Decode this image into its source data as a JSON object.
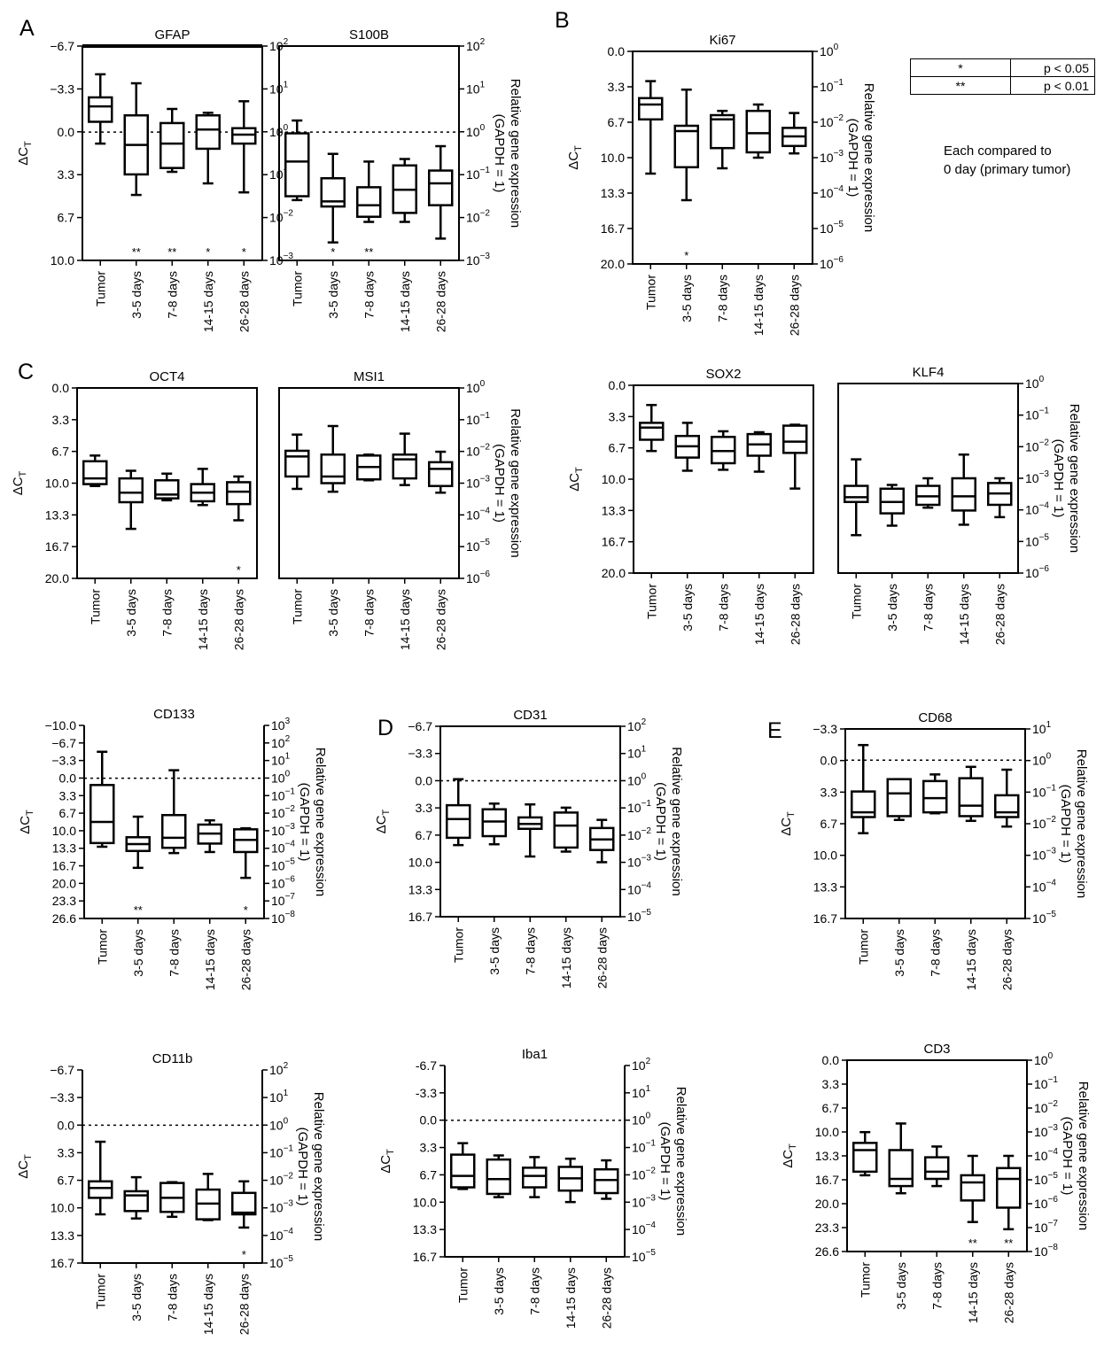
{
  "panel_letters": [
    "A",
    "B",
    "C",
    "D",
    "E"
  ],
  "legend": {
    "rows": [
      {
        "symbol": "*",
        "pvalue": "p < 0.05"
      },
      {
        "symbol": "**",
        "pvalue": "p < 0.01"
      }
    ],
    "note_line1": "Each compared to",
    "note_line2": "0 day (primary tumor)"
  },
  "common": {
    "categories": [
      "Tumor",
      "3-5 days",
      "7-8 days",
      "14-15 days",
      "26-28 days"
    ],
    "left_axis_label": "ΔC",
    "left_axis_label_sub": "T",
    "right_axis_label_line1": "Relative gene expression",
    "right_axis_label_line2": "(GAPDH = 1)"
  },
  "chart_data": [
    {
      "type": "box",
      "panel": "A",
      "title": "GFAP",
      "left_ticks": [
        "−6.7",
        "−3.3",
        "0.0",
        "3.3",
        "6.7",
        "10.0"
      ],
      "right_ticks": [
        2,
        1,
        0,
        -1,
        -2,
        -3
      ],
      "ylim": [
        -6.7,
        10.0
      ],
      "dotted_line_at": 0,
      "boxes": [
        {
          "min": -4.5,
          "q1": -2.7,
          "median": -2.0,
          "q3": -0.8,
          "max": 0.9
        },
        {
          "min": -3.8,
          "q1": -1.3,
          "median": 1.0,
          "q3": 3.3,
          "max": 4.9
        },
        {
          "min": -1.8,
          "q1": -0.7,
          "median": 0.9,
          "q3": 2.8,
          "max": 3.1
        },
        {
          "min": -1.5,
          "q1": -1.3,
          "median": -0.2,
          "q3": 1.3,
          "max": 4.0
        },
        {
          "min": -2.4,
          "q1": -0.3,
          "median": 0.2,
          "q3": 0.9,
          "max": 4.7
        }
      ],
      "significance": [
        "",
        "**",
        "**",
        "*",
        "*"
      ]
    },
    {
      "type": "box",
      "panel": "A",
      "title": "S100B",
      "left_ticks": [],
      "right_ticks": [
        2,
        1,
        0,
        -1,
        -2,
        -3
      ],
      "ylim": [
        -6.7,
        10.0
      ],
      "dotted_line_at": 0,
      "boxes": [
        {
          "min": -0.9,
          "q1": 0.1,
          "median": 2.3,
          "q3": 5.0,
          "max": 5.3
        },
        {
          "min": 1.7,
          "q1": 3.6,
          "median": 5.4,
          "q3": 5.8,
          "max": 8.6
        },
        {
          "min": 2.3,
          "q1": 4.3,
          "median": 5.7,
          "q3": 6.6,
          "max": 7.0
        },
        {
          "min": 2.1,
          "q1": 2.6,
          "median": 4.5,
          "q3": 6.3,
          "max": 7.0
        },
        {
          "min": 1.1,
          "q1": 3.0,
          "median": 4.0,
          "q3": 5.7,
          "max": 8.3
        }
      ],
      "significance": [
        "",
        "*",
        "**",
        "",
        ""
      ]
    },
    {
      "type": "box",
      "panel": "B",
      "title": "Ki67",
      "left_ticks": [
        "0.0",
        "3.3",
        "6.7",
        "10.0",
        "13.3",
        "16.7",
        "20.0"
      ],
      "right_ticks": [
        0,
        -1,
        -2,
        -3,
        -4,
        -5,
        -6
      ],
      "ylim": [
        0,
        20.0
      ],
      "dotted_line_at": null,
      "boxes": [
        {
          "min": 2.8,
          "q1": 4.4,
          "median": 5.0,
          "q3": 6.4,
          "max": 11.5
        },
        {
          "min": 3.6,
          "q1": 7.0,
          "median": 7.5,
          "q3": 10.9,
          "max": 14.0
        },
        {
          "min": 5.6,
          "q1": 6.0,
          "median": 6.4,
          "q3": 9.1,
          "max": 11.0
        },
        {
          "min": 5.0,
          "q1": 5.6,
          "median": 7.7,
          "q3": 9.5,
          "max": 10.0
        },
        {
          "min": 5.8,
          "q1": 7.2,
          "median": 8.0,
          "q3": 8.9,
          "max": 9.6
        }
      ],
      "significance": [
        "",
        "*",
        "",
        "",
        ""
      ]
    },
    {
      "type": "box",
      "panel": "C",
      "title": "OCT4",
      "left_ticks": [
        "0.0",
        "3.3",
        "6.7",
        "10.0",
        "13.3",
        "16.7",
        "20.0"
      ],
      "right_ticks": [],
      "ylim": [
        0,
        20.0
      ],
      "dotted_line_at": null,
      "boxes": [
        {
          "min": 7.1,
          "q1": 7.7,
          "median": 9.5,
          "q3": 10.1,
          "max": 10.3
        },
        {
          "min": 8.7,
          "q1": 9.5,
          "median": 11.0,
          "q3": 12.0,
          "max": 14.8
        },
        {
          "min": 9.0,
          "q1": 9.7,
          "median": 11.2,
          "q3": 11.6,
          "max": 11.8
        },
        {
          "min": 8.5,
          "q1": 10.1,
          "median": 11.0,
          "q3": 11.9,
          "max": 12.3
        },
        {
          "min": 9.3,
          "q1": 9.9,
          "median": 10.9,
          "q3": 12.2,
          "max": 13.9
        }
      ],
      "significance": [
        "",
        "",
        "",
        "",
        "*"
      ]
    },
    {
      "type": "box",
      "panel": "C",
      "title": "MSI1",
      "left_ticks": [],
      "right_ticks": [
        0,
        -1,
        -2,
        -3,
        -4,
        -5,
        -6
      ],
      "ylim": [
        0,
        20.0
      ],
      "dotted_line_at": null,
      "boxes": [
        {
          "min": 4.9,
          "q1": 6.6,
          "median": 7.2,
          "q3": 9.3,
          "max": 10.6
        },
        {
          "min": 4.0,
          "q1": 7.0,
          "median": 9.3,
          "q3": 10.0,
          "max": 10.9
        },
        {
          "min": 7.0,
          "q1": 7.1,
          "median": 8.3,
          "q3": 9.6,
          "max": 9.7
        },
        {
          "min": 4.8,
          "q1": 7.0,
          "median": 7.5,
          "q3": 9.5,
          "max": 10.2
        },
        {
          "min": 6.7,
          "q1": 7.8,
          "median": 8.5,
          "q3": 10.3,
          "max": 11.0
        }
      ],
      "significance": [
        "",
        "",
        "",
        "",
        ""
      ]
    },
    {
      "type": "box",
      "panel": "C",
      "title": "SOX2",
      "left_ticks": [
        "0.0",
        "3.3",
        "6.7",
        "10.0",
        "13.3",
        "16.7",
        "20.0"
      ],
      "right_ticks": [],
      "ylim": [
        0,
        20.0
      ],
      "dotted_line_at": null,
      "boxes": [
        {
          "min": 2.1,
          "q1": 4.0,
          "median": 4.5,
          "q3": 5.8,
          "max": 7.0
        },
        {
          "min": 4.0,
          "q1": 5.4,
          "median": 6.5,
          "q3": 7.7,
          "max": 9.1
        },
        {
          "min": 4.9,
          "q1": 5.5,
          "median": 7.0,
          "q3": 8.3,
          "max": 9.0
        },
        {
          "min": 5.0,
          "q1": 5.2,
          "median": 6.3,
          "q3": 7.5,
          "max": 9.2
        },
        {
          "min": 4.2,
          "q1": 4.3,
          "median": 6.0,
          "q3": 7.2,
          "max": 11.0
        }
      ],
      "significance": [
        "",
        "",
        "",
        "",
        ""
      ]
    },
    {
      "type": "box",
      "panel": "C",
      "title": "KLF4",
      "left_ticks": [],
      "right_ticks": [
        0,
        -1,
        -2,
        -3,
        -4,
        -5,
        -6
      ],
      "ylim": [
        0,
        20.0
      ],
      "dotted_line_at": null,
      "boxes": [
        {
          "min": 8.0,
          "q1": 10.8,
          "median": 12.0,
          "q3": 12.5,
          "max": 16.0
        },
        {
          "min": 10.7,
          "q1": 11.1,
          "median": 12.5,
          "q3": 13.7,
          "max": 15.0
        },
        {
          "min": 10.0,
          "q1": 10.8,
          "median": 11.9,
          "q3": 12.8,
          "max": 13.1
        },
        {
          "min": 7.5,
          "q1": 10.0,
          "median": 11.9,
          "q3": 13.4,
          "max": 14.9
        },
        {
          "min": 10.0,
          "q1": 10.5,
          "median": 11.6,
          "q3": 12.8,
          "max": 14.1
        }
      ],
      "significance": [
        "",
        "",
        "",
        "",
        ""
      ]
    },
    {
      "type": "box",
      "panel": "C",
      "title": "CD133",
      "left_ticks": [
        "−10.0",
        "−6.7",
        "−3.3",
        "0.0",
        "3.3",
        "6.7",
        "10.0",
        "13.3",
        "16.7",
        "20.0",
        "23.3",
        "26.6"
      ],
      "right_ticks": [
        3,
        2,
        1,
        0,
        -1,
        -2,
        -3,
        -4,
        -5,
        -6,
        -7,
        -8
      ],
      "ylim": [
        -10.0,
        26.6
      ],
      "dotted_line_at": 0,
      "boxes": [
        {
          "min": -5.0,
          "q1": 1.3,
          "median": 8.3,
          "q3": 12.3,
          "max": 13.0
        },
        {
          "min": 7.3,
          "q1": 11.2,
          "median": 12.5,
          "q3": 13.8,
          "max": 17.0
        },
        {
          "min": -1.5,
          "q1": 7.0,
          "median": 11.3,
          "q3": 13.2,
          "max": 14.2
        },
        {
          "min": 8.0,
          "q1": 8.8,
          "median": 10.5,
          "q3": 12.4,
          "max": 14.0
        },
        {
          "min": 9.5,
          "q1": 9.7,
          "median": 11.7,
          "q3": 14.0,
          "max": 18.9
        }
      ],
      "significance": [
        "",
        "**",
        "",
        "",
        "*"
      ]
    },
    {
      "type": "box",
      "panel": "D",
      "title": "CD31",
      "left_ticks": [
        "−6.7",
        "−3.3",
        "0.0",
        "3.3",
        "6.7",
        "10.0",
        "13.3",
        "16.7"
      ],
      "right_ticks": [
        2,
        1,
        0,
        -1,
        -2,
        -3,
        -4,
        -5
      ],
      "ylim": [
        -6.7,
        16.7
      ],
      "dotted_line_at": 0,
      "boxes": [
        {
          "min": -0.2,
          "q1": 3.0,
          "median": 4.7,
          "q3": 7.0,
          "max": 7.9
        },
        {
          "min": 2.8,
          "q1": 3.5,
          "median": 5.0,
          "q3": 6.8,
          "max": 7.8
        },
        {
          "min": 2.9,
          "q1": 4.5,
          "median": 5.3,
          "q3": 5.9,
          "max": 9.3
        },
        {
          "min": 3.3,
          "q1": 3.9,
          "median": 5.5,
          "q3": 8.2,
          "max": 8.7
        },
        {
          "min": 4.8,
          "q1": 5.8,
          "median": 7.2,
          "q3": 8.5,
          "max": 10.0
        }
      ],
      "significance": [
        "",
        "",
        "",
        "",
        ""
      ]
    },
    {
      "type": "box",
      "panel": "E",
      "title": "CD68",
      "left_ticks": [
        "−3.3",
        "0.0",
        "3.3",
        "6.7",
        "10.0",
        "13.3",
        "16.7"
      ],
      "right_ticks": [
        1,
        0,
        -1,
        -2,
        -3,
        -4,
        -5
      ],
      "ylim": [
        -3.3,
        16.7
      ],
      "dotted_line_at": 0,
      "boxes": [
        {
          "min": -1.6,
          "q1": 3.3,
          "median": 5.5,
          "q3": 6.0,
          "max": 7.7
        },
        {
          "min": 2.0,
          "q1": 2.0,
          "median": 3.5,
          "q3": 5.9,
          "max": 6.3
        },
        {
          "min": 1.5,
          "q1": 2.2,
          "median": 4.0,
          "q3": 5.5,
          "max": 5.6
        },
        {
          "min": 0.7,
          "q1": 1.9,
          "median": 4.8,
          "q3": 5.9,
          "max": 6.4
        },
        {
          "min": 1.0,
          "q1": 3.7,
          "median": 5.5,
          "q3": 6.0,
          "max": 7.0
        }
      ],
      "significance": [
        "",
        "",
        "",
        "",
        ""
      ]
    },
    {
      "type": "box",
      "panel": "E",
      "title": "CD11b",
      "left_ticks": [
        "−6.7",
        "−3.3",
        "0.0",
        "3.3",
        "6.7",
        "10.0",
        "13.3",
        "16.7"
      ],
      "right_ticks": [
        2,
        1,
        0,
        -1,
        -2,
        -3,
        -4,
        -5
      ],
      "ylim": [
        -6.7,
        16.7
      ],
      "dotted_line_at": 0,
      "boxes": [
        {
          "min": 2.0,
          "q1": 6.8,
          "median": 7.6,
          "q3": 8.8,
          "max": 10.8
        },
        {
          "min": 6.3,
          "q1": 8.0,
          "median": 8.5,
          "q3": 10.4,
          "max": 11.3
        },
        {
          "min": 6.9,
          "q1": 7.0,
          "median": 8.8,
          "q3": 10.5,
          "max": 11.1
        },
        {
          "min": 5.9,
          "q1": 7.8,
          "median": 9.5,
          "q3": 11.4,
          "max": 11.5
        },
        {
          "min": 6.8,
          "q1": 8.2,
          "median": 10.6,
          "q3": 10.8,
          "max": 12.4
        }
      ],
      "significance": [
        "",
        "",
        "",
        "",
        "*"
      ]
    },
    {
      "type": "box",
      "panel": "E",
      "title": "Iba1",
      "left_ticks": [
        "-6.7",
        "-3.3",
        "0.0",
        "3.3",
        "6.7",
        "10.0",
        "13.3",
        "16.7"
      ],
      "right_ticks": [
        2,
        1,
        0,
        -1,
        -2,
        -3,
        -4,
        -5
      ],
      "ylim": [
        -6.7,
        16.7
      ],
      "dotted_line_at": 0,
      "boxes": [
        {
          "min": 2.8,
          "q1": 4.2,
          "median": 6.8,
          "q3": 8.2,
          "max": 8.4
        },
        {
          "min": 4.3,
          "q1": 4.8,
          "median": 7.2,
          "q3": 9.0,
          "max": 9.4
        },
        {
          "min": 4.5,
          "q1": 5.8,
          "median": 6.8,
          "q3": 8.2,
          "max": 9.4
        },
        {
          "min": 4.7,
          "q1": 5.7,
          "median": 7.1,
          "q3": 8.6,
          "max": 10.0
        },
        {
          "min": 4.9,
          "q1": 6.0,
          "median": 7.3,
          "q3": 8.9,
          "max": 9.6
        }
      ],
      "significance": [
        "",
        "",
        "",
        "",
        ""
      ]
    },
    {
      "type": "box",
      "panel": "E",
      "title": "CD3",
      "left_ticks": [
        "0.0",
        "3.3",
        "6.7",
        "10.0",
        "13.3",
        "16.7",
        "20.0",
        "23.3",
        "26.6"
      ],
      "right_ticks": [
        0,
        -1,
        -2,
        -3,
        -4,
        -5,
        -6,
        -7,
        -8
      ],
      "ylim": [
        0,
        26.6
      ],
      "dotted_line_at": null,
      "boxes": [
        {
          "min": 10.0,
          "q1": 11.5,
          "median": 12.5,
          "q3": 15.5,
          "max": 16.0
        },
        {
          "min": 8.8,
          "q1": 12.5,
          "median": 16.5,
          "q3": 17.5,
          "max": 18.5
        },
        {
          "min": 12.0,
          "q1": 13.5,
          "median": 15.5,
          "q3": 16.5,
          "max": 17.5
        },
        {
          "min": 13.3,
          "q1": 16.0,
          "median": 17.0,
          "q3": 19.5,
          "max": 22.5
        },
        {
          "min": 13.3,
          "q1": 15.0,
          "median": 16.5,
          "q3": 20.5,
          "max": 23.5
        }
      ],
      "significance": [
        "",
        "",
        "",
        "**",
        "**"
      ]
    }
  ]
}
